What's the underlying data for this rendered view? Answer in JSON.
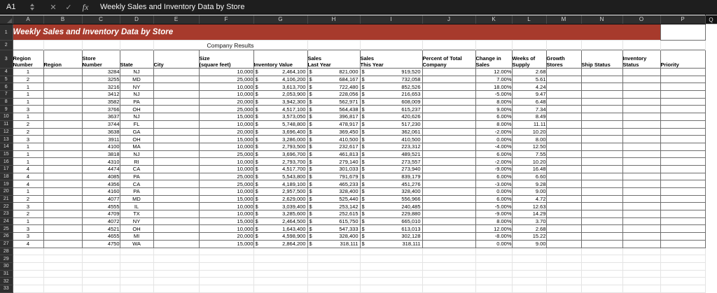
{
  "chrome": {
    "name_box": "A1",
    "cancel_glyph": "✕",
    "confirm_glyph": "✓",
    "fx_label": "fx",
    "formula_text": "Weekly Sales and Inventory Data by Store"
  },
  "colors": {
    "banner_red": "#a73a2c",
    "chrome_bg": "#1e1e1e",
    "header_strip_bg": "#2f2f2f"
  },
  "sheet": {
    "column_letters": [
      "A",
      "B",
      "C",
      "D",
      "E",
      "F",
      "G",
      "H",
      "I",
      "J",
      "K",
      "L",
      "M",
      "N",
      "O",
      "P",
      "Q"
    ],
    "title_banner": "Weekly Sales and Inventory Data by Store",
    "subtitle": "Company Results",
    "headers": [
      "Region\nNumber",
      "Region",
      "Store\nNumber",
      "State",
      "City",
      "Size\n(square feet)",
      "Inventory Value",
      "Sales\nLast Year",
      "Sales\nThis Year",
      "Percent of Total\nCompany",
      "Change in\nSales",
      "Weeks of\nSupply",
      "Growth\nStores",
      "Ship Status",
      "Inventory\nStatus",
      "Priority"
    ],
    "last_visible_row": 33,
    "rows": [
      [
        "1",
        "3284",
        "NJ",
        "10,000",
        "2,464,100",
        "821,000",
        "919,520",
        "12.00%",
        "2.68"
      ],
      [
        "2",
        "3255",
        "MD",
        "25,000",
        "4,106,200",
        "684,167",
        "732,058",
        "7.00%",
        "5.61"
      ],
      [
        "1",
        "3216",
        "NY",
        "10,000",
        "3,613,700",
        "722,480",
        "852,526",
        "18.00%",
        "4.24"
      ],
      [
        "1",
        "3412",
        "NJ",
        "10,000",
        "2,053,900",
        "228,056",
        "216,653",
        "-5.00%",
        "9.47"
      ],
      [
        "1",
        "3582",
        "PA",
        "20,000",
        "3,942,300",
        "562,971",
        "608,009",
        "8.00%",
        "6.48"
      ],
      [
        "3",
        "3766",
        "OH",
        "25,000",
        "4,517,100",
        "564,438",
        "615,237",
        "9.00%",
        "7.34"
      ],
      [
        "1",
        "3637",
        "NJ",
        "15,000",
        "3,573,050",
        "396,817",
        "420,626",
        "6.00%",
        "8.49"
      ],
      [
        "2",
        "3744",
        "FL",
        "10,000",
        "5,748,800",
        "478,917",
        "517,230",
        "8.00%",
        "11.11"
      ],
      [
        "2",
        "3638",
        "GA",
        "20,000",
        "3,696,400",
        "369,450",
        "362,061",
        "-2.00%",
        "10.20"
      ],
      [
        "3",
        "3911",
        "OH",
        "15,000",
        "3,286,000",
        "410,500",
        "410,500",
        "0.00%",
        "8.00"
      ],
      [
        "1",
        "4100",
        "MA",
        "10,000",
        "2,793,500",
        "232,617",
        "223,312",
        "-4.00%",
        "12.50"
      ],
      [
        "1",
        "3818",
        "NJ",
        "25,000",
        "3,696,700",
        "461,813",
        "489,521",
        "6.00%",
        "7.55"
      ],
      [
        "1",
        "4310",
        "RI",
        "10,000",
        "2,793,700",
        "279,140",
        "273,557",
        "-2.00%",
        "10.20"
      ],
      [
        "4",
        "4474",
        "CA",
        "10,000",
        "4,517,700",
        "301,033",
        "273,940",
        "-9.00%",
        "16.48"
      ],
      [
        "4",
        "4085",
        "PA",
        "25,000",
        "5,543,800",
        "791,679",
        "839,179",
        "6.00%",
        "6.60"
      ],
      [
        "4",
        "4356",
        "CA",
        "25,000",
        "4,189,100",
        "465,233",
        "451,276",
        "-3.00%",
        "9.28"
      ],
      [
        "1",
        "4160",
        "PA",
        "10,000",
        "2,957,500",
        "328,400",
        "328,400",
        "0.00%",
        "9.00"
      ],
      [
        "2",
        "4077",
        "MD",
        "15,000",
        "2,629,000",
        "525,440",
        "556,966",
        "6.00%",
        "4.72"
      ],
      [
        "3",
        "4555",
        "IL",
        "10,000",
        "3,039,400",
        "253,142",
        "240,485",
        "-5.00%",
        "12.63"
      ],
      [
        "2",
        "4709",
        "TX",
        "10,000",
        "3,285,600",
        "252,615",
        "229,880",
        "-9.00%",
        "14.29"
      ],
      [
        "1",
        "4072",
        "NY",
        "15,000",
        "2,464,500",
        "615,750",
        "665,010",
        "8.00%",
        "3.70"
      ],
      [
        "3",
        "4521",
        "OH",
        "10,000",
        "1,643,400",
        "547,333",
        "613,013",
        "12.00%",
        "2.68"
      ],
      [
        "3",
        "4655",
        "MI",
        "20,000",
        "4,598,900",
        "328,400",
        "302,128",
        "-8.00%",
        "15.22"
      ],
      [
        "4",
        "4750",
        "WA",
        "15,000",
        "2,864,200",
        "318,111",
        "318,111",
        "0.00%",
        "9.00"
      ]
    ]
  }
}
